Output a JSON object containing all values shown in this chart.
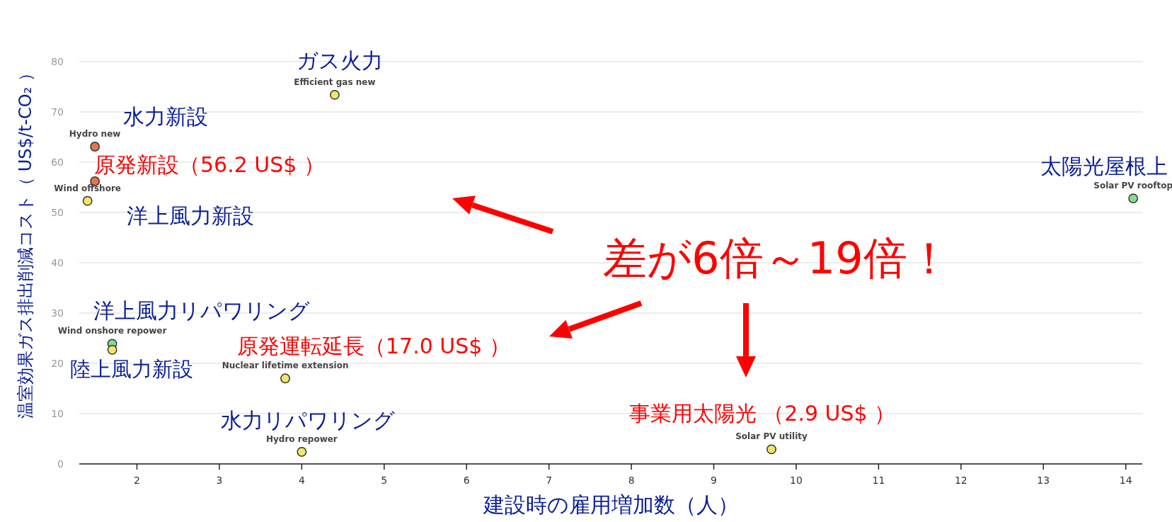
{
  "chart_data": {
    "type": "scatter",
    "xlabel": "建設時の雇用増加数（人）",
    "ylabel": "温室効果ガス排出削減コスト（ US$/t-CO₂ ）",
    "xlim": [
      1.3,
      14.2
    ],
    "xticks": [
      2,
      3,
      4,
      5,
      6,
      7,
      8,
      9,
      10,
      11,
      12,
      13,
      14
    ],
    "ylim": [
      0,
      80
    ],
    "yticks": [
      0,
      10,
      20,
      30,
      40,
      50,
      60,
      70,
      80
    ],
    "grid": "y",
    "marker": "circle",
    "series": [
      {
        "name": "Efficient gas new",
        "color": "#f3e56a",
        "x": [
          4.4
        ],
        "values": [
          73.4
        ]
      },
      {
        "name": "Hydro new",
        "color": "#e8744f",
        "x": [
          1.49
        ],
        "values": [
          63.1
        ]
      },
      {
        "name": null,
        "color": "#e8744f",
        "x": [
          1.49
        ],
        "values": [
          56.2
        ]
      },
      {
        "name": "Wind offshore",
        "color": "#f3e56a",
        "x": [
          1.4
        ],
        "values": [
          52.3
        ]
      },
      {
        "name": "Wind onshore repower",
        "color": "#86dc8e",
        "x": [
          1.7
        ],
        "values": [
          23.9
        ]
      },
      {
        "name": null,
        "color": "#f3e56a",
        "x": [
          1.7
        ],
        "values": [
          22.7
        ]
      },
      {
        "name": "Nuclear lifetime extension",
        "color": "#f3e56a",
        "x": [
          3.8
        ],
        "values": [
          17.0
        ]
      },
      {
        "name": "Hydro repower",
        "color": "#f3e56a",
        "x": [
          4.0
        ],
        "values": [
          2.4
        ]
      },
      {
        "name": "Solar PV utility",
        "color": "#f3e56a",
        "x": [
          9.7
        ],
        "values": [
          2.9
        ]
      },
      {
        "name": "Solar PV rooftop",
        "color": "#86dc8e",
        "x": [
          14.09
        ],
        "values": [
          52.8
        ]
      }
    ],
    "annotations": [
      "ガス火力",
      "水力新設",
      "原発新設（56.2 US$ ）",
      "洋上風力新設",
      "洋上風力リパワリング",
      "原発運転延長（17.0 US$ ）",
      "陸上風力新設",
      "水力リパワリング",
      "事業用太陽光 （2.9 US$ ）",
      "太陽光屋根上",
      "差が6倍～19倍！"
    ]
  }
}
